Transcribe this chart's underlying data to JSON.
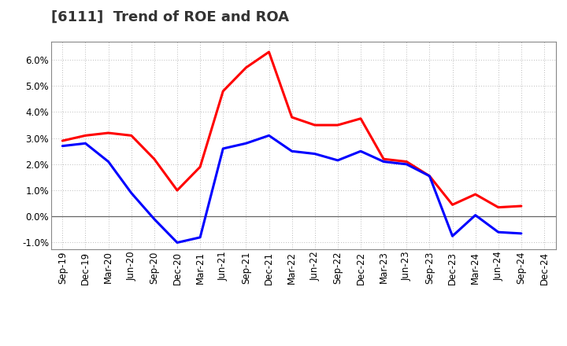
{
  "title": "[6111]  Trend of ROE and ROA",
  "labels": [
    "Sep-19",
    "Dec-19",
    "Mar-20",
    "Jun-20",
    "Sep-20",
    "Dec-20",
    "Mar-21",
    "Jun-21",
    "Sep-21",
    "Dec-21",
    "Mar-22",
    "Jun-22",
    "Sep-22",
    "Dec-22",
    "Mar-23",
    "Jun-23",
    "Sep-23",
    "Dec-23",
    "Mar-24",
    "Jun-24",
    "Sep-24",
    "Dec-24"
  ],
  "ROE": [
    2.9,
    3.1,
    3.2,
    3.1,
    2.2,
    1.0,
    1.9,
    4.8,
    5.7,
    6.3,
    3.8,
    3.5,
    3.5,
    3.75,
    2.2,
    2.1,
    1.55,
    0.45,
    0.85,
    0.35,
    0.4,
    null
  ],
  "ROA": [
    2.7,
    2.8,
    2.1,
    0.9,
    -0.1,
    -1.0,
    -0.8,
    2.6,
    2.8,
    3.1,
    2.5,
    2.4,
    2.15,
    2.5,
    2.1,
    2.0,
    1.55,
    -0.75,
    0.05,
    -0.6,
    -0.65,
    null
  ],
  "roe_color": "#ff0000",
  "roa_color": "#0000ff",
  "background_color": "#ffffff",
  "grid_color": "#bbbbbb",
  "ylim": [
    -1.25,
    6.7
  ],
  "yticks": [
    -1.0,
    0.0,
    1.0,
    2.0,
    3.0,
    4.0,
    5.0,
    6.0
  ],
  "line_width": 2.2,
  "title_fontsize": 13,
  "tick_fontsize": 8.5,
  "legend_fontsize": 10
}
